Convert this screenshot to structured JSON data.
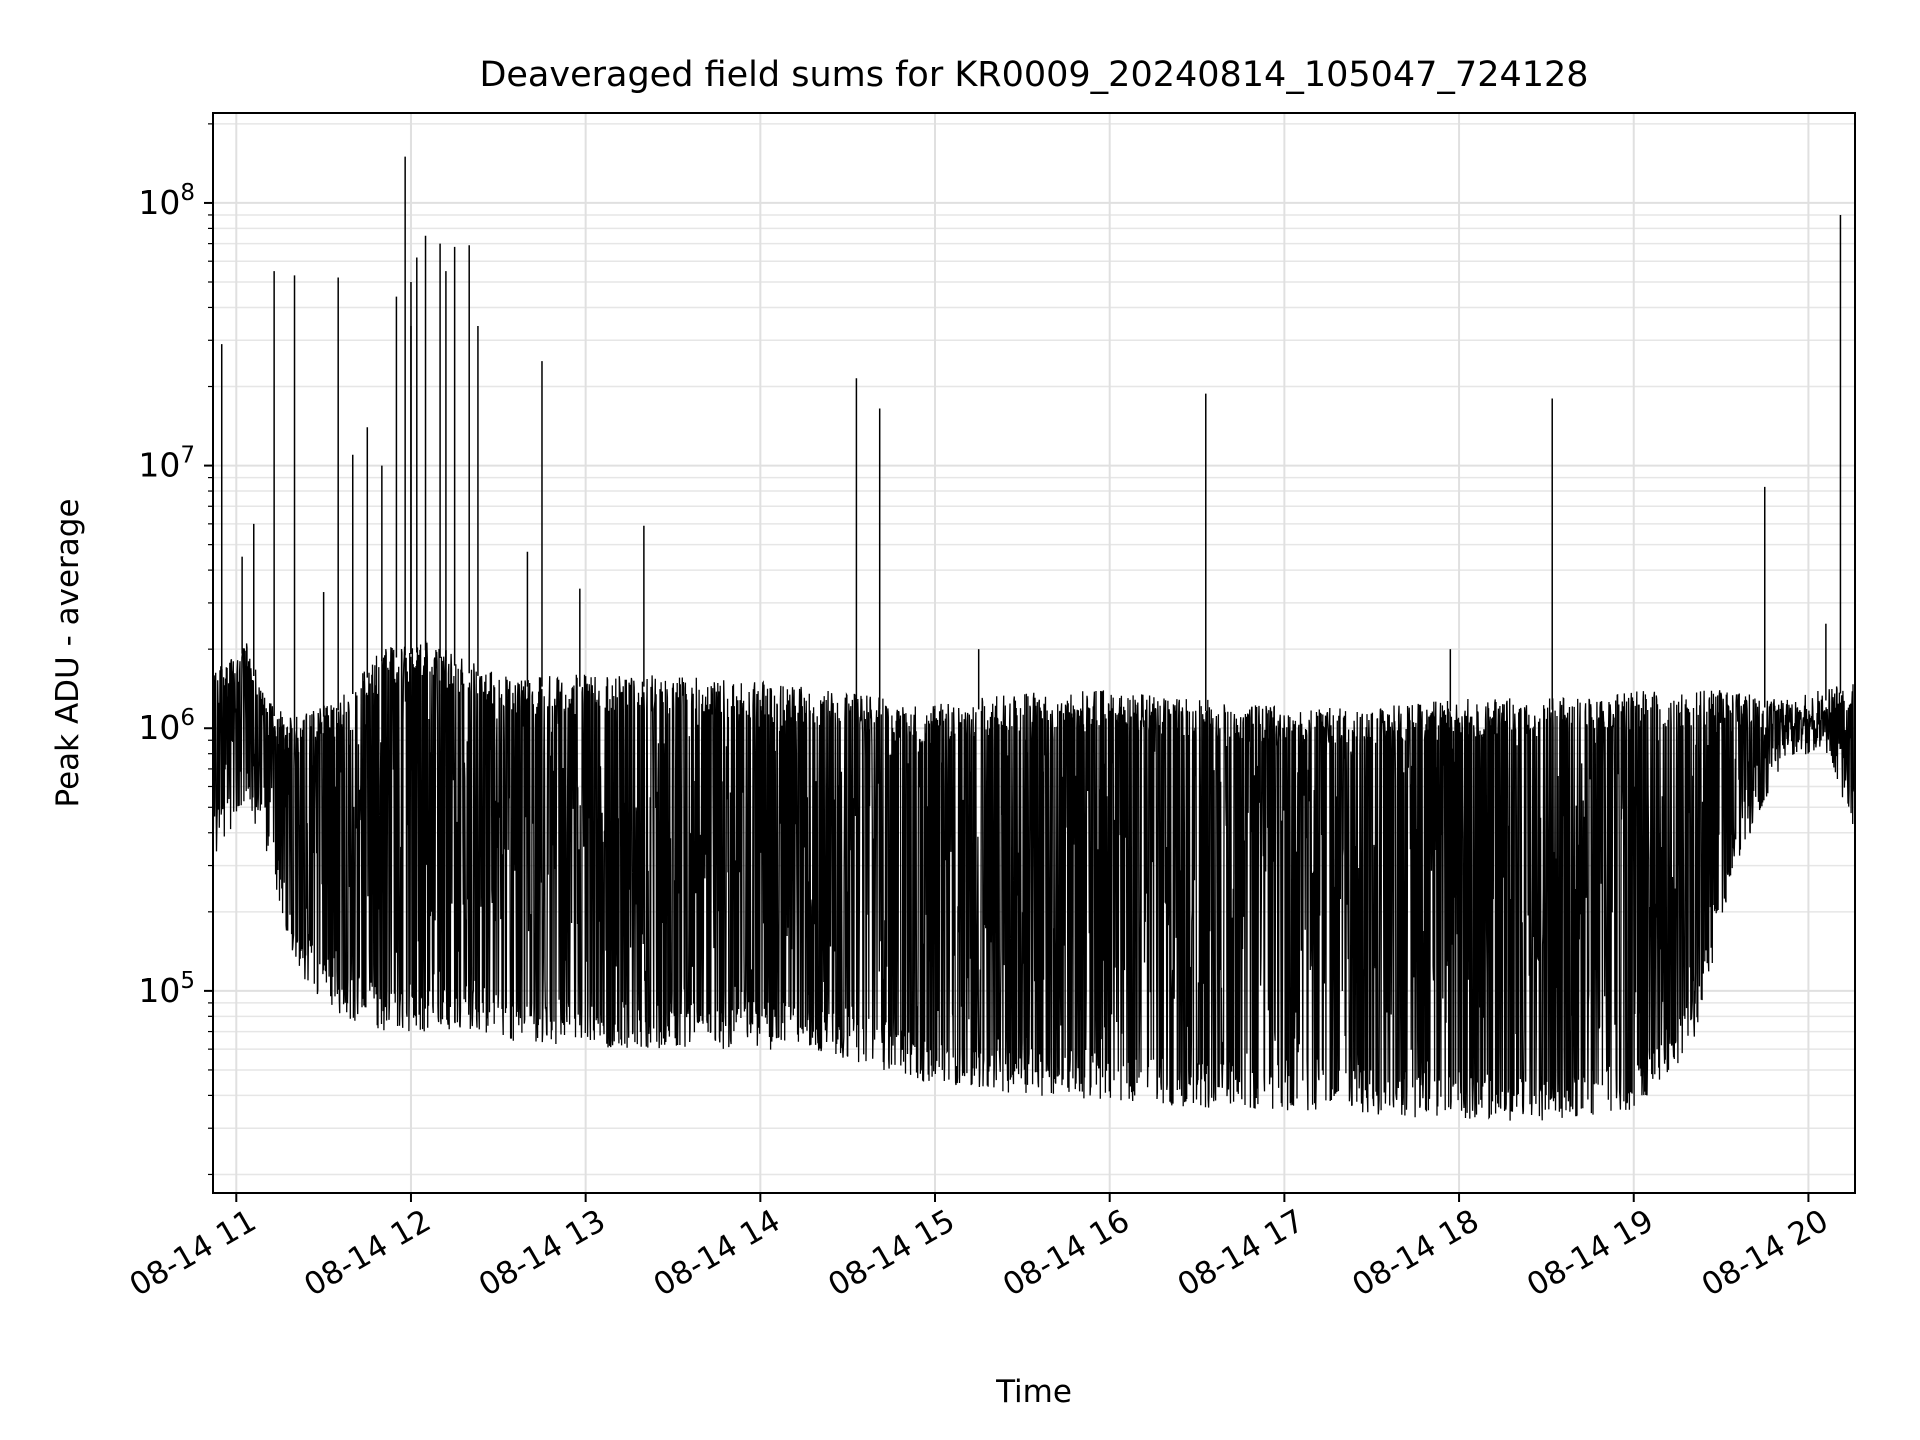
{
  "chart_data": {
    "type": "line",
    "title": "Deaveraged field sums for KR0009_20240814_105047_724128",
    "xlabel": "Time",
    "ylabel": "Peak ADU - average",
    "x_axis_type": "datetime",
    "xlim": [
      "2024-08-14 10:52",
      "2024-08-14 20:16"
    ],
    "y_scale": "log",
    "ylim": [
      17000,
      220000000
    ],
    "x_ticks": [
      {
        "value": "2024-08-14 11:00",
        "label": "08-14 11"
      },
      {
        "value": "2024-08-14 12:00",
        "label": "08-14 12"
      },
      {
        "value": "2024-08-14 13:00",
        "label": "08-14 13"
      },
      {
        "value": "2024-08-14 14:00",
        "label": "08-14 14"
      },
      {
        "value": "2024-08-14 15:00",
        "label": "08-14 15"
      },
      {
        "value": "2024-08-14 16:00",
        "label": "08-14 16"
      },
      {
        "value": "2024-08-14 17:00",
        "label": "08-14 17"
      },
      {
        "value": "2024-08-14 18:00",
        "label": "08-14 18"
      },
      {
        "value": "2024-08-14 19:00",
        "label": "08-14 19"
      },
      {
        "value": "2024-08-14 20:00",
        "label": "08-14 20"
      }
    ],
    "y_ticks": [
      {
        "value": 100000,
        "base": "10",
        "exp": "5"
      },
      {
        "value": 1000000,
        "base": "10",
        "exp": "6"
      },
      {
        "value": 10000000,
        "base": "10",
        "exp": "7"
      },
      {
        "value": 100000000,
        "base": "10",
        "exp": "8"
      }
    ],
    "grid": true,
    "minor_grid": true,
    "line_color": "#000000",
    "series": [
      {
        "envelope": {
          "time": [
            "2024-08-14 10:52",
            "2024-08-14 11:03",
            "2024-08-14 11:10",
            "2024-08-14 11:20",
            "2024-08-14 11:35",
            "2024-08-14 11:50",
            "2024-08-14 12:05",
            "2024-08-14 12:20",
            "2024-08-14 12:35",
            "2024-08-14 13:00",
            "2024-08-14 13:30",
            "2024-08-14 14:00",
            "2024-08-14 14:30",
            "2024-08-14 14:55",
            "2024-08-14 15:30",
            "2024-08-14 16:00",
            "2024-08-14 16:30",
            "2024-08-14 17:00",
            "2024-08-14 17:30",
            "2024-08-14 18:00",
            "2024-08-14 18:30",
            "2024-08-14 19:00",
            "2024-08-14 19:20",
            "2024-08-14 19:35",
            "2024-08-14 19:50",
            "2024-08-14 20:05",
            "2024-08-14 20:16"
          ],
          "upper": [
            1600000,
            2200000,
            1300000,
            1100000,
            1300000,
            2000000,
            2200000,
            1800000,
            1600000,
            1600000,
            1600000,
            1500000,
            1400000,
            1200000,
            1400000,
            1400000,
            1300000,
            1200000,
            1200000,
            1300000,
            1300000,
            1400000,
            1400000,
            1400000,
            1300000,
            1400000,
            1600000
          ],
          "lower": [
            300000,
            500000,
            350000,
            120000,
            80000,
            70000,
            70000,
            70000,
            60000,
            60000,
            60000,
            60000,
            55000,
            45000,
            40000,
            38000,
            36000,
            35000,
            34000,
            32000,
            32000,
            35000,
            60000,
            300000,
            700000,
            850000,
            400000
          ]
        },
        "spikes": [
          [
            "2024-08-14 10:55",
            29000000
          ],
          [
            "2024-08-14 11:02",
            4500000
          ],
          [
            "2024-08-14 11:06",
            6000000
          ],
          [
            "2024-08-14 11:13",
            55000000
          ],
          [
            "2024-08-14 11:20",
            53000000
          ],
          [
            "2024-08-14 11:30",
            3300000
          ],
          [
            "2024-08-14 11:35",
            52000000
          ],
          [
            "2024-08-14 11:40",
            11000000
          ],
          [
            "2024-08-14 11:45",
            14000000
          ],
          [
            "2024-08-14 11:50",
            10000000
          ],
          [
            "2024-08-14 11:55",
            44000000
          ],
          [
            "2024-08-14 12:00",
            34000000
          ],
          [
            "2024-08-14 11:58",
            150000000
          ],
          [
            "2024-08-14 12:00",
            50000000
          ],
          [
            "2024-08-14 12:02",
            62000000
          ],
          [
            "2024-08-14 12:05",
            75000000
          ],
          [
            "2024-08-14 12:10",
            70000000
          ],
          [
            "2024-08-14 12:12",
            55000000
          ],
          [
            "2024-08-14 12:15",
            68000000
          ],
          [
            "2024-08-14 12:20",
            69000000
          ],
          [
            "2024-08-14 12:23",
            34000000
          ],
          [
            "2024-08-14 12:40",
            4700000
          ],
          [
            "2024-08-14 12:45",
            25000000
          ],
          [
            "2024-08-14 12:58",
            3400000
          ],
          [
            "2024-08-14 13:20",
            5900000
          ],
          [
            "2024-08-14 14:33",
            21500000
          ],
          [
            "2024-08-14 14:41",
            16500000
          ],
          [
            "2024-08-14 15:15",
            2000000
          ],
          [
            "2024-08-14 16:33",
            18800000
          ],
          [
            "2024-08-14 17:57",
            2000000
          ],
          [
            "2024-08-14 18:32",
            18000000
          ],
          [
            "2024-08-14 19:45",
            8300000
          ],
          [
            "2024-08-14 20:06",
            2500000
          ],
          [
            "2024-08-14 20:11",
            90000000
          ]
        ]
      }
    ]
  }
}
